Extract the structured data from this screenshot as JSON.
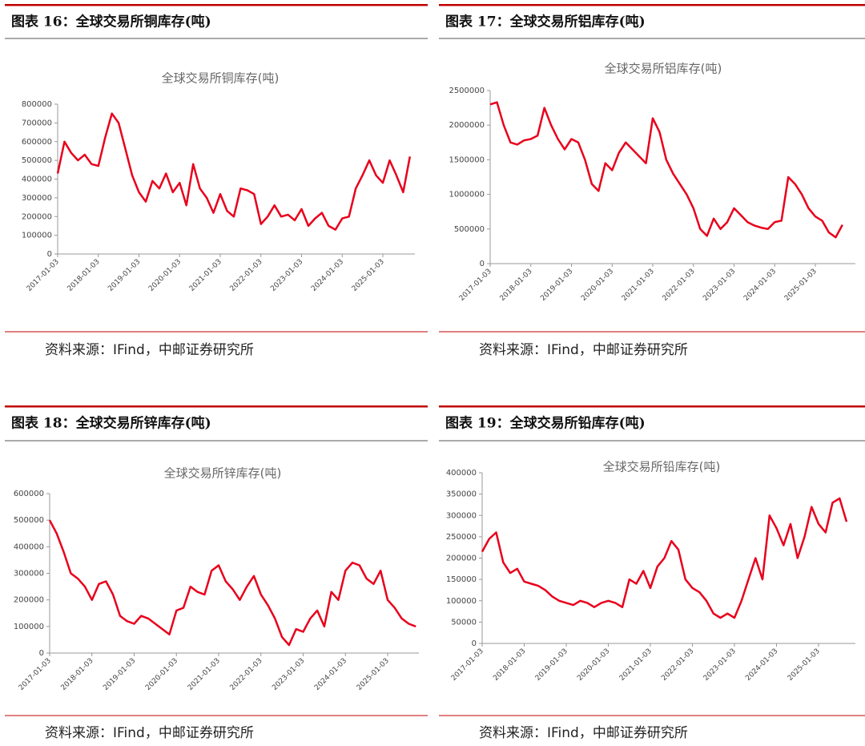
{
  "chart_data": [
    {
      "type": "line",
      "caption": "图表 16：全球交易所铜库存(吨)",
      "title": "全球交易所铜库存(吨)",
      "source": "资料来源：IFind，中邮证券研究所",
      "categories": [
        "2017-01-03",
        null,
        null,
        null,
        null,
        null,
        "2018-01-03",
        null,
        null,
        null,
        null,
        null,
        "2019-01-03",
        null,
        null,
        null,
        null,
        null,
        "2020-01-03",
        null,
        null,
        null,
        null,
        null,
        "2021-01-03",
        null,
        null,
        null,
        null,
        null,
        "2022-01-03",
        null,
        null,
        null,
        null,
        null,
        "2023-01-03",
        null,
        null,
        null,
        null,
        null,
        "2024-01-03",
        null,
        null,
        null,
        null,
        null,
        "2025-01-03",
        null,
        null,
        null,
        null
      ],
      "series": [
        {
          "name": "全球交易所铜库存",
          "color": "#e8001c",
          "values": [
            430000,
            600000,
            540000,
            500000,
            530000,
            480000,
            470000,
            620000,
            750000,
            700000,
            560000,
            420000,
            330000,
            280000,
            390000,
            350000,
            430000,
            330000,
            380000,
            260000,
            480000,
            350000,
            300000,
            220000,
            320000,
            230000,
            200000,
            350000,
            340000,
            320000,
            160000,
            200000,
            260000,
            200000,
            210000,
            180000,
            240000,
            150000,
            190000,
            220000,
            150000,
            130000,
            190000,
            200000,
            350000,
            420000,
            500000,
            420000,
            380000,
            500000,
            420000,
            330000,
            520000
          ]
        }
      ],
      "ylim": [
        0,
        800000
      ],
      "yticks": [
        0,
        100000,
        200000,
        300000,
        400000,
        500000,
        600000,
        700000,
        800000
      ]
    },
    {
      "type": "line",
      "caption": "图表 17：全球交易所铝库存(吨)",
      "title": "全球交易所铝库存(吨)",
      "source": "资料来源：IFind，中邮证券研究所",
      "categories": [
        "2017-01-03",
        null,
        null,
        null,
        null,
        null,
        "2018-01-03",
        null,
        null,
        null,
        null,
        null,
        "2019-01-03",
        null,
        null,
        null,
        null,
        null,
        "2020-01-03",
        null,
        null,
        null,
        null,
        null,
        "2021-01-03",
        null,
        null,
        null,
        null,
        null,
        "2022-01-03",
        null,
        null,
        null,
        null,
        null,
        "2023-01-03",
        null,
        null,
        null,
        null,
        null,
        "2024-01-03",
        null,
        null,
        null,
        null,
        null,
        "2025-01-03",
        null,
        null,
        null,
        null
      ],
      "series": [
        {
          "name": "全球交易所铝库存",
          "color": "#e8001c",
          "values": [
            2300000,
            2330000,
            2000000,
            1750000,
            1720000,
            1780000,
            1800000,
            1850000,
            2250000,
            2000000,
            1800000,
            1650000,
            1800000,
            1750000,
            1500000,
            1150000,
            1050000,
            1450000,
            1350000,
            1600000,
            1750000,
            1650000,
            1550000,
            1450000,
            2100000,
            1900000,
            1500000,
            1300000,
            1150000,
            1000000,
            800000,
            500000,
            400000,
            650000,
            500000,
            600000,
            800000,
            700000,
            600000,
            550000,
            520000,
            500000,
            600000,
            620000,
            1250000,
            1150000,
            1000000,
            800000,
            680000,
            620000,
            450000,
            380000,
            560000
          ]
        }
      ],
      "ylim": [
        0,
        2500000
      ],
      "yticks": [
        0,
        500000,
        1000000,
        1500000,
        2000000,
        2500000
      ]
    },
    {
      "type": "line",
      "caption": "图表 18：全球交易所锌库存(吨)",
      "title": "全球交易所锌库存(吨)",
      "source": "资料来源：IFind，中邮证券研究所",
      "categories": [
        "2017-01-03",
        null,
        null,
        null,
        null,
        null,
        "2018-01-03",
        null,
        null,
        null,
        null,
        null,
        "2019-01-03",
        null,
        null,
        null,
        null,
        null,
        "2020-01-03",
        null,
        null,
        null,
        null,
        null,
        "2021-01-03",
        null,
        null,
        null,
        null,
        null,
        "2022-01-03",
        null,
        null,
        null,
        null,
        null,
        "2023-01-03",
        null,
        null,
        null,
        null,
        null,
        "2024-01-03",
        null,
        null,
        null,
        null,
        null,
        "2025-01-03",
        null,
        null,
        null,
        null
      ],
      "series": [
        {
          "name": "全球交易所锌库存",
          "color": "#e8001c",
          "values": [
            500000,
            450000,
            380000,
            300000,
            280000,
            250000,
            200000,
            260000,
            270000,
            220000,
            140000,
            120000,
            110000,
            140000,
            130000,
            110000,
            90000,
            70000,
            160000,
            170000,
            250000,
            230000,
            220000,
            310000,
            330000,
            270000,
            240000,
            200000,
            250000,
            290000,
            220000,
            180000,
            130000,
            60000,
            30000,
            90000,
            80000,
            130000,
            160000,
            100000,
            230000,
            200000,
            310000,
            340000,
            330000,
            280000,
            260000,
            310000,
            200000,
            170000,
            130000,
            110000,
            100000
          ]
        }
      ],
      "ylim": [
        0,
        600000
      ],
      "yticks": [
        0,
        100000,
        200000,
        300000,
        400000,
        500000,
        600000
      ]
    },
    {
      "type": "line",
      "caption": "图表 19：全球交易所铅库存(吨)",
      "title": "全球交易所铅库存(吨)",
      "source": "资料来源：IFind，中邮证券研究所",
      "categories": [
        "2017-01-03",
        null,
        null,
        null,
        null,
        null,
        "2018-01-03",
        null,
        null,
        null,
        null,
        null,
        "2019-01-03",
        null,
        null,
        null,
        null,
        null,
        "2020-01-03",
        null,
        null,
        null,
        null,
        null,
        "2021-01-03",
        null,
        null,
        null,
        null,
        null,
        "2022-01-03",
        null,
        null,
        null,
        null,
        null,
        "2023-01-03",
        null,
        null,
        null,
        null,
        null,
        "2024-01-03",
        null,
        null,
        null,
        null,
        null,
        "2025-01-03",
        null,
        null,
        null,
        null
      ],
      "series": [
        {
          "name": "全球交易所铅库存",
          "color": "#e8001c",
          "values": [
            215000,
            245000,
            260000,
            190000,
            165000,
            175000,
            145000,
            140000,
            135000,
            125000,
            110000,
            100000,
            95000,
            90000,
            100000,
            95000,
            85000,
            95000,
            100000,
            95000,
            85000,
            150000,
            140000,
            170000,
            130000,
            180000,
            200000,
            240000,
            220000,
            150000,
            130000,
            120000,
            100000,
            70000,
            60000,
            70000,
            60000,
            100000,
            150000,
            200000,
            150000,
            300000,
            270000,
            230000,
            280000,
            200000,
            250000,
            320000,
            280000,
            260000,
            330000,
            340000,
            285000
          ]
        }
      ],
      "ylim": [
        0,
        400000
      ],
      "yticks": [
        0,
        50000,
        100000,
        150000,
        200000,
        250000,
        300000,
        350000,
        400000
      ]
    }
  ]
}
